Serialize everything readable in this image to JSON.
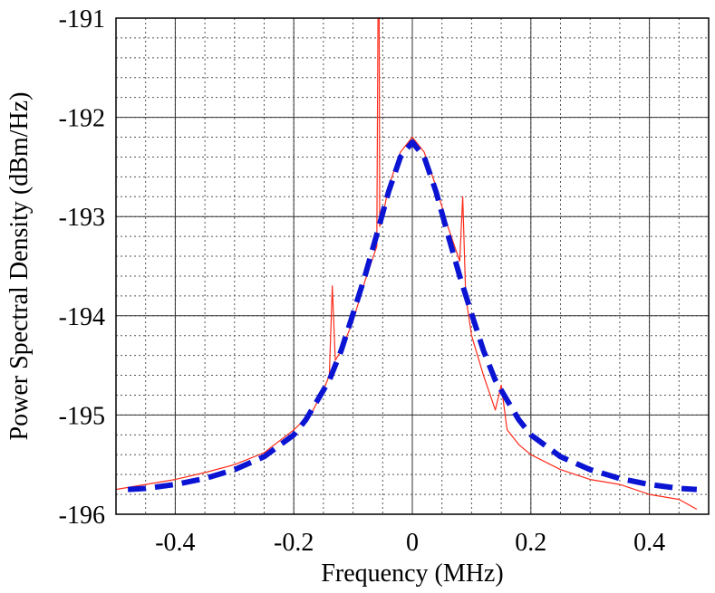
{
  "chart_data": {
    "type": "line",
    "xlabel": "Frequency (MHz)",
    "ylabel": "Power Spectral Density (dBm/Hz)",
    "xlim": [
      -0.5,
      0.5
    ],
    "ylim": [
      -196,
      -191
    ],
    "x_ticks": [
      -0.4,
      -0.2,
      0,
      0.2,
      0.4
    ],
    "x_tick_labels": [
      "-0.4",
      "-0.2",
      "0",
      "0.2",
      "0.4"
    ],
    "y_ticks": [
      -196,
      -195,
      -194,
      -193,
      -192,
      -191
    ],
    "y_tick_labels": [
      "-196",
      "-195",
      "-194",
      "-193",
      "-192",
      "-191"
    ],
    "grid": {
      "major": true,
      "minor_dotted": true,
      "x_minor_step": 0.05,
      "y_minor_step": 0.2
    },
    "legend": "none",
    "series": [
      {
        "color": "#ff2a1a",
        "style": "thin-noisy",
        "x": [
          -0.5,
          -0.45,
          -0.4,
          -0.35,
          -0.3,
          -0.25,
          -0.2,
          -0.17,
          -0.15,
          -0.14,
          -0.135,
          -0.13,
          -0.12,
          -0.1,
          -0.08,
          -0.06,
          -0.058,
          -0.056,
          -0.055,
          -0.05,
          -0.04,
          -0.02,
          0,
          0.02,
          0.04,
          0.06,
          0.08,
          0.085,
          0.09,
          0.1,
          0.12,
          0.14,
          0.15,
          0.16,
          0.18,
          0.2,
          0.25,
          0.3,
          0.35,
          0.4,
          0.45,
          0.48
        ],
        "y": [
          -195.75,
          -195.7,
          -195.65,
          -195.58,
          -195.5,
          -195.38,
          -195.15,
          -194.98,
          -194.75,
          -194.6,
          -193.7,
          -194.45,
          -194.35,
          -194.05,
          -193.65,
          -193.3,
          -191,
          -191,
          -193.1,
          -193.0,
          -192.7,
          -192.35,
          -192.2,
          -192.35,
          -192.7,
          -193.1,
          -193.45,
          -192.8,
          -193.8,
          -194.2,
          -194.6,
          -194.95,
          -194.7,
          -195.15,
          -195.3,
          -195.4,
          -195.55,
          -195.65,
          -195.7,
          -195.8,
          -195.85,
          -195.95
        ]
      },
      {
        "color": "#0a14d2",
        "style": "thick-dashed",
        "x": [
          -0.48,
          -0.45,
          -0.4,
          -0.35,
          -0.3,
          -0.25,
          -0.2,
          -0.18,
          -0.16,
          -0.14,
          -0.12,
          -0.1,
          -0.08,
          -0.06,
          -0.04,
          -0.02,
          0,
          0.02,
          0.04,
          0.06,
          0.08,
          0.1,
          0.12,
          0.14,
          0.16,
          0.18,
          0.2,
          0.25,
          0.3,
          0.35,
          0.4,
          0.45,
          0.48
        ],
        "y": [
          -195.75,
          -195.74,
          -195.7,
          -195.64,
          -195.55,
          -195.42,
          -195.2,
          -195.05,
          -194.85,
          -194.65,
          -194.35,
          -193.98,
          -193.6,
          -193.18,
          -192.75,
          -192.4,
          -192.25,
          -192.4,
          -192.75,
          -193.18,
          -193.6,
          -193.98,
          -194.35,
          -194.65,
          -194.85,
          -195.05,
          -195.2,
          -195.42,
          -195.55,
          -195.64,
          -195.7,
          -195.74,
          -195.75
        ]
      }
    ]
  }
}
